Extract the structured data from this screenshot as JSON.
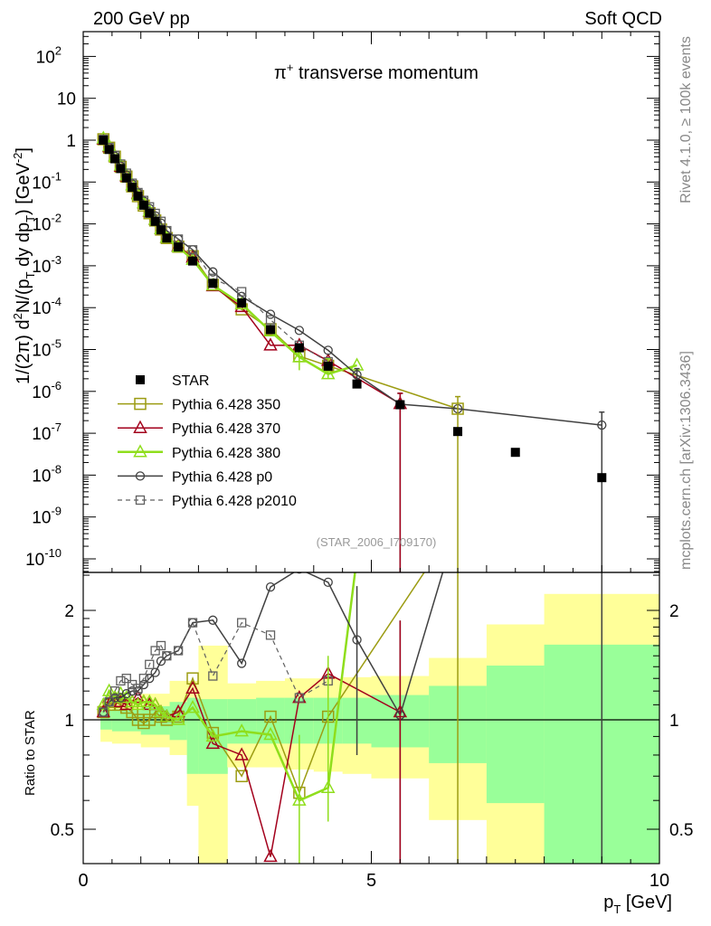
{
  "header": {
    "left": "200 GeV pp",
    "right": "Soft QCD"
  },
  "side_labels": {
    "rivet": "Rivet 4.1.0, ≥ 100k events",
    "mcplots": "mcplots.cern.ch [arXiv:1306.3436]"
  },
  "chart_data": {
    "type": "line",
    "title": "π⁺ transverse momentum",
    "title_parts": {
      "pi": "π",
      "sup": "+",
      "rest": " transverse momentum"
    },
    "analysis_id": "(STAR_2006_I709170)",
    "xlabel": "p_T [GeV]",
    "xlabel_parts": {
      "p": "p",
      "sub": "T",
      "rest": " [GeV]"
    },
    "ylabel": "1/(2π) d²N/(p_T dy dp_T) [GeV⁻²]",
    "ylabel_parts": {
      "a": "1/(2π)  d",
      "b": "2",
      "c": "N/(p",
      "d": "T",
      "e": " dy dp",
      "f": "T",
      "g": ") [GeV",
      "h": "-2",
      "i": "]"
    },
    "ratio_ylabel": "Ratio to STAR",
    "xlim": [
      0,
      10
    ],
    "ylim": [
      3e-11,
      400
    ],
    "yscale": "log",
    "ratio_ylim": [
      0.4,
      2.54
    ],
    "ratio_yscale": "log",
    "x_ticks": [
      "0",
      "5",
      "10"
    ],
    "x_tick_values": [
      0,
      5,
      10
    ],
    "y_ticks": [
      {
        "base": "10",
        "exp": "2",
        "v": 2
      },
      {
        "base": "10",
        "exp": "",
        "v": 1
      },
      {
        "base": "1",
        "exp": "",
        "v": 0
      },
      {
        "base": "10",
        "exp": "-1",
        "v": -1
      },
      {
        "base": "10",
        "exp": "-2",
        "v": -2
      },
      {
        "base": "10",
        "exp": "-3",
        "v": -3
      },
      {
        "base": "10",
        "exp": "-4",
        "v": -4
      },
      {
        "base": "10",
        "exp": "-5",
        "v": -5
      },
      {
        "base": "10",
        "exp": "-6",
        "v": -6
      },
      {
        "base": "10",
        "exp": "-7",
        "v": -7
      },
      {
        "base": "10",
        "exp": "-8",
        "v": -8
      },
      {
        "base": "10",
        "exp": "-9",
        "v": -9
      },
      {
        "base": "10",
        "exp": "-10",
        "v": -10
      }
    ],
    "ratio_ticks": [
      {
        "label": "2",
        "v": 2
      },
      {
        "label": "1",
        "v": 1
      },
      {
        "label": "0.5",
        "v": 0.5
      }
    ],
    "legend_placement": "lower-left",
    "x": [
      0.35,
      0.45,
      0.55,
      0.65,
      0.75,
      0.85,
      0.95,
      1.05,
      1.15,
      1.25,
      1.35,
      1.45,
      1.65,
      1.9,
      2.25,
      2.75,
      3.25,
      3.75,
      4.25,
      4.75,
      5.5,
      6.5,
      7.5,
      9.0
    ],
    "reference": {
      "name": "STAR",
      "color": "#000000",
      "values": [
        1.0,
        0.6,
        0.36,
        0.21,
        0.125,
        0.075,
        0.046,
        0.028,
        0.018,
        0.0115,
        0.0072,
        0.0046,
        0.0028,
        0.0013,
        0.00038,
        0.00013,
        3e-05,
        1.1e-05,
        4e-06,
        1.5e-06,
        4.8e-07,
        1.1e-07,
        3.5e-08,
        8.7e-09
      ]
    },
    "series": [
      {
        "name": "Pythia 6.428 350",
        "color": "#9c9c12",
        "marker": "square",
        "dash": false,
        "width": 1.5,
        "ratio": [
          1.05,
          1.1,
          1.12,
          1.1,
          1.08,
          1.05,
          1.0,
          0.98,
          1.0,
          1.05,
          1.02,
          1.0,
          1.02,
          1.3,
          0.92,
          0.7,
          1.02,
          0.63,
          1.02,
          null,
          null,
          3.5,
          null,
          null
        ]
      },
      {
        "name": "Pythia 6.428 370",
        "color": "#a3001c",
        "marker": "triangle",
        "dash": false,
        "width": 1.5,
        "ratio": [
          1.05,
          1.15,
          1.15,
          1.12,
          1.1,
          1.12,
          1.15,
          1.12,
          1.1,
          1.1,
          1.05,
          1.02,
          1.05,
          1.22,
          0.86,
          0.8,
          0.42,
          1.15,
          1.34,
          null,
          1.05,
          null,
          null,
          null
        ]
      },
      {
        "name": "Pythia 6.428 380",
        "color": "#8fde1c",
        "marker": "triangle",
        "dash": false,
        "width": 2.5,
        "ratio": [
          1.1,
          1.2,
          1.15,
          1.18,
          1.15,
          1.12,
          1.1,
          1.12,
          1.12,
          1.1,
          1.05,
          1.02,
          1.0,
          1.08,
          0.9,
          0.93,
          0.91,
          0.6,
          0.65,
          2.8,
          null,
          null,
          null,
          null
        ]
      },
      {
        "name": "Pythia 6.428 p0",
        "color": "#404040",
        "marker": "circle",
        "dash": false,
        "width": 1.5,
        "ratio": [
          1.05,
          1.12,
          1.15,
          1.15,
          1.18,
          1.2,
          1.2,
          1.25,
          1.3,
          1.35,
          1.45,
          1.5,
          1.55,
          1.85,
          1.88,
          1.43,
          2.32,
          2.6,
          2.39,
          1.66,
          1.03,
          3.5,
          null,
          18
        ]
      },
      {
        "name": "Pythia 6.428 p2010",
        "color": "#606060",
        "marker": "square-small",
        "dash": true,
        "width": 1.2,
        "ratio": [
          1.05,
          1.12,
          1.2,
          1.28,
          1.3,
          1.25,
          1.22,
          1.3,
          1.42,
          1.55,
          1.6,
          1.5,
          1.55,
          1.85,
          1.32,
          1.85,
          1.71,
          1.15,
          1.28,
          null,
          null,
          null,
          null,
          null
        ]
      }
    ],
    "tail_errors": [
      {
        "series": 3,
        "x": 5.5,
        "lo": 0,
        "hi": 9e-07
      },
      {
        "series": 3,
        "x": 9.0,
        "lo": 0,
        "hi": 3.2e-07
      },
      {
        "series": 0,
        "x": 6.5,
        "lo": 0,
        "hi": 7.5e-07
      },
      {
        "series": 1,
        "x": 5.5,
        "lo": 0,
        "hi": 9e-07
      },
      {
        "series": 2,
        "x": 4.25,
        "lo": 2.1e-06,
        "hi": 6e-06
      },
      {
        "series": 2,
        "x": 3.75,
        "lo": 3.2e-06,
        "hi": 1e-05
      },
      {
        "series": 3,
        "x": 4.75,
        "lo": 1.2e-06,
        "hi": 3.5e-06
      }
    ],
    "bands": {
      "edges": [
        0.3,
        0.5,
        1.0,
        1.5,
        1.8,
        2.0,
        2.5,
        3.0,
        3.5,
        4.0,
        4.5,
        5.0,
        6.0,
        7.0,
        8.0,
        10.0
      ],
      "yellow_hi": [
        1.12,
        1.14,
        1.18,
        1.28,
        1.28,
        1.6,
        1.26,
        1.28,
        1.3,
        1.3,
        1.31,
        1.32,
        1.48,
        1.83,
        2.22
      ],
      "yellow_lo": [
        0.87,
        0.86,
        0.84,
        0.8,
        0.58,
        0.4,
        0.74,
        0.74,
        0.73,
        0.72,
        0.71,
        0.69,
        0.53,
        0.4,
        0.4
      ],
      "green_hi": [
        1.06,
        1.07,
        1.09,
        1.12,
        1.15,
        1.14,
        1.14,
        1.15,
        1.15,
        1.15,
        1.15,
        1.17,
        1.24,
        1.41,
        1.61
      ],
      "green_lo": [
        0.94,
        0.93,
        0.91,
        0.88,
        0.71,
        0.71,
        0.86,
        0.86,
        0.86,
        0.86,
        0.86,
        0.84,
        0.76,
        0.59,
        0.4
      ]
    }
  }
}
